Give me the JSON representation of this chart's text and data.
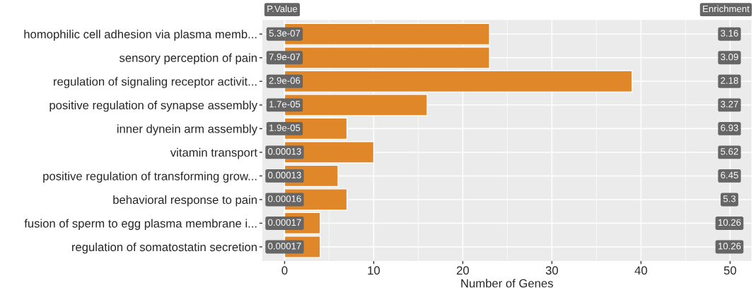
{
  "chart_data": {
    "type": "bar",
    "orientation": "horizontal",
    "xlabel": "Number of Genes",
    "categories": [
      "homophilic cell adhesion via plasma memb...",
      "sensory perception of pain",
      "regulation of signaling receptor activit...",
      "positive regulation of synapse assembly",
      "inner dynein arm assembly",
      "vitamin transport",
      "positive regulation of transforming grow...",
      "behavioral response to pain",
      "fusion of sperm to egg plasma membrane i...",
      "regulation of somatostatin secretion"
    ],
    "values": [
      23,
      23,
      39,
      16,
      7,
      10,
      6,
      7,
      4,
      4
    ],
    "color": "#e0872a",
    "xlim": [
      -2.5,
      52.4
    ],
    "xticks": [
      0,
      10,
      20,
      30,
      40,
      50
    ],
    "grid": true,
    "annotations": [
      "P.Value",
      "Enrichment",
      {
        "text": "5.3e-07",
        "y": "homophilic cell adhesion via plasma memb..."
      },
      {
        "text": "7.9e-07",
        "y": "sensory perception of pain"
      },
      {
        "text": "2.9e-06",
        "y": "regulation of signaling receptor activit..."
      },
      {
        "text": "1.7e-05",
        "y": "positive regulation of synapse assembly"
      },
      {
        "text": "1.9e-05",
        "y": "inner dynein arm assembly"
      },
      {
        "text": "0.00013",
        "y": "vitamin transport"
      },
      {
        "text": "0.00013",
        "y": "positive regulation of transforming grow..."
      },
      {
        "text": "0.00016",
        "y": "behavioral response to pain"
      },
      {
        "text": "0.00017",
        "y": "fusion of sperm to egg plasma membrane i..."
      },
      {
        "text": "0.00017",
        "y": "regulation of somatostatin secretion"
      },
      {
        "text": "3.16",
        "y": "homophilic cell adhesion via plasma memb..."
      },
      {
        "text": "3.09",
        "y": "sensory perception of pain"
      },
      {
        "text": "2.18",
        "y": "regulation of signaling receptor activit..."
      },
      {
        "text": "3.27",
        "y": "positive regulation of synapse assembly"
      },
      {
        "text": "6.93",
        "y": "inner dynein arm assembly"
      },
      {
        "text": "5.62",
        "y": "vitamin transport"
      },
      {
        "text": "6.45",
        "y": "positive regulation of transforming grow..."
      },
      {
        "text": "5.3",
        "y": "behavioral response to pain"
      },
      {
        "text": "10.26",
        "y": "fusion of sperm to egg plasma membrane i..."
      },
      {
        "text": "10.26",
        "y": "regulation of somatostatin secretion"
      }
    ]
  }
}
